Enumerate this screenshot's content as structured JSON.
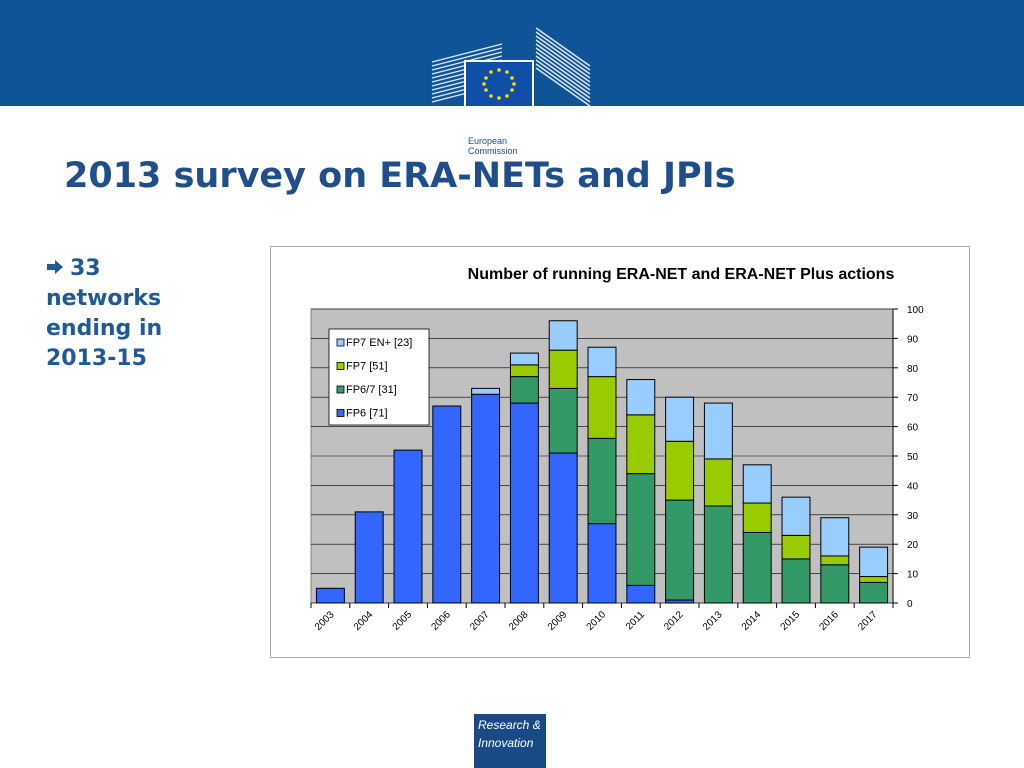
{
  "brand": {
    "org_line1": "European",
    "org_line2": "Commission",
    "badge_line1": "Research &",
    "badge_line2": "Innovation"
  },
  "slide": {
    "title": "2013 survey on ERA-NETs and JPIs",
    "bullet_icon": "right-arrow-icon",
    "bullet_lines": [
      "33",
      "networks",
      "ending in",
      "2013-15"
    ]
  },
  "colors": {
    "header_band": "#0f5496",
    "title_text": "#1f4e8c",
    "plot_background": "#c0c0c0",
    "FP6": "#3366ff",
    "FP6/7": "#339966",
    "FP7": "#99cc00",
    "FP7 EN+": "#99ccff"
  },
  "chart_data": {
    "type": "bar",
    "stacked": true,
    "title": "Number of running ERA-NET and ERA-NET Plus actions",
    "xlabel": "",
    "ylabel": "",
    "ylim": [
      0,
      100
    ],
    "yticks": [
      0,
      10,
      20,
      30,
      40,
      50,
      60,
      70,
      80,
      90,
      100
    ],
    "y_axis_side": "right",
    "grid": true,
    "legend_position": "top-left",
    "categories": [
      "2003",
      "2004",
      "2005",
      "2006",
      "2007",
      "2008",
      "2009",
      "2010",
      "2011",
      "2012",
      "2013",
      "2014",
      "2015",
      "2016",
      "2017"
    ],
    "series": [
      {
        "name": "FP6 [71]",
        "key": "FP6",
        "values": [
          5,
          31,
          52,
          67,
          71,
          68,
          51,
          27,
          6,
          1,
          0,
          0,
          0,
          0,
          0
        ]
      },
      {
        "name": "FP6/7 [31]",
        "key": "FP6/7",
        "values": [
          0,
          0,
          0,
          0,
          0,
          9,
          22,
          29,
          38,
          34,
          33,
          24,
          15,
          13,
          7
        ]
      },
      {
        "name": "FP7 [51]",
        "key": "FP7",
        "values": [
          0,
          0,
          0,
          0,
          0,
          4,
          13,
          21,
          20,
          20,
          16,
          10,
          8,
          3,
          2
        ]
      },
      {
        "name": "FP7 EN+ [23]",
        "key": "FP7 EN+",
        "values": [
          0,
          0,
          0,
          0,
          2,
          4,
          10,
          10,
          12,
          15,
          19,
          13,
          13,
          13,
          10
        ]
      }
    ]
  }
}
